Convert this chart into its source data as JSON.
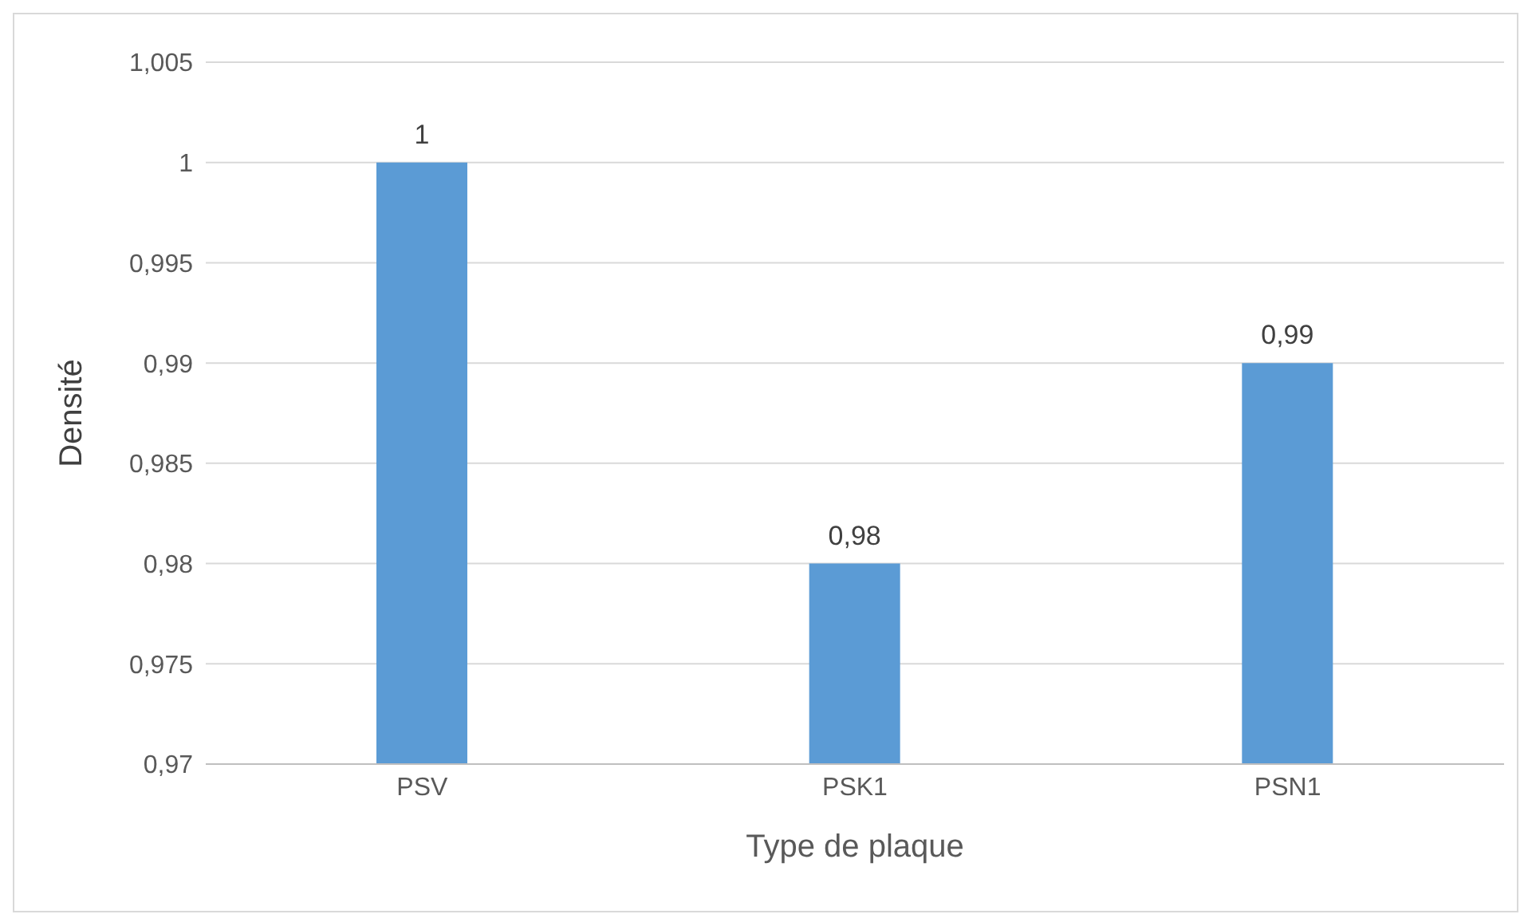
{
  "chart_data": {
    "type": "bar",
    "xlabel": "Type de plaque",
    "ylabel": "Densité",
    "categories": [
      "PSV",
      "PSK1",
      "PSN1"
    ],
    "values": [
      1,
      0.98,
      0.99
    ],
    "color": "#5b9bd5",
    "value_labels": [
      "1",
      "0,98",
      "0,99"
    ],
    "ylim": [
      0.97,
      1.005
    ],
    "yticks": [
      {
        "value": 0.97,
        "label": "0,97"
      },
      {
        "value": 0.975,
        "label": "0,975"
      },
      {
        "value": 0.98,
        "label": "0,98"
      },
      {
        "value": 0.985,
        "label": "0,985"
      },
      {
        "value": 0.99,
        "label": "0,99"
      },
      {
        "value": 0.995,
        "label": "0,995"
      },
      {
        "value": 1,
        "label": "1"
      },
      {
        "value": 1.005,
        "label": "1,005"
      }
    ],
    "grid": "y",
    "legend": false
  }
}
